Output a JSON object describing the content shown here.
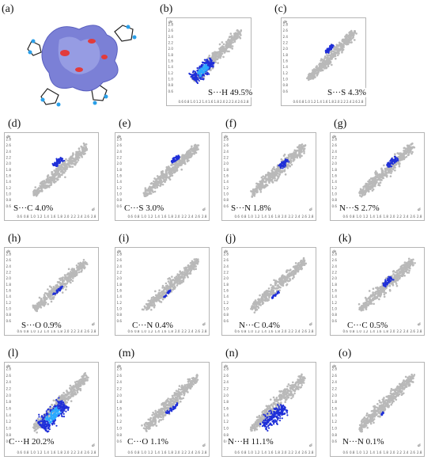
{
  "figure": {
    "panels": [
      {
        "letter": "(a)",
        "kind": "hirshfeld-surface"
      },
      {
        "letter": "(b)",
        "kind": "fingerprint",
        "contact": "S···H",
        "percent": 49.5,
        "caption": "S···H 49.5%"
      },
      {
        "letter": "(c)",
        "kind": "fingerprint",
        "contact": "S···S",
        "percent": 4.3,
        "caption": "S···S 4.3%"
      },
      {
        "letter": "(d)",
        "kind": "fingerprint",
        "contact": "S···C",
        "percent": 4.0,
        "caption": "S···C 4.0%"
      },
      {
        "letter": "(e)",
        "kind": "fingerprint",
        "contact": "C···S",
        "percent": 3.0,
        "caption": "C···S 3.0%"
      },
      {
        "letter": "(f)",
        "kind": "fingerprint",
        "contact": "S···N",
        "percent": 1.8,
        "caption": "S···N 1.8%"
      },
      {
        "letter": "(g)",
        "kind": "fingerprint",
        "contact": "N···S",
        "percent": 2.7,
        "caption": "N···S 2.7%"
      },
      {
        "letter": "(h)",
        "kind": "fingerprint",
        "contact": "S···O",
        "percent": 0.9,
        "caption": "S···O 0.9%"
      },
      {
        "letter": "(i)",
        "kind": "fingerprint",
        "contact": "C···N",
        "percent": 0.4,
        "caption": "C···N 0.4%"
      },
      {
        "letter": "(j)",
        "kind": "fingerprint",
        "contact": "N···C",
        "percent": 0.4,
        "caption": "N···C 0.4%"
      },
      {
        "letter": "(k)",
        "kind": "fingerprint",
        "contact": "C···C",
        "percent": 0.5,
        "caption": "C···C 0.5%"
      },
      {
        "letter": "(l)",
        "kind": "fingerprint",
        "contact": "C···H",
        "percent": 20.2,
        "caption": "C···H 20.2%"
      },
      {
        "letter": "(m)",
        "kind": "fingerprint",
        "contact": "C···O",
        "percent": 1.1,
        "caption": "C···O 1.1%"
      },
      {
        "letter": "(n)",
        "kind": "fingerprint",
        "contact": "N···H",
        "percent": 11.1,
        "caption": "N···H 11.1%"
      },
      {
        "letter": "(o)",
        "kind": "fingerprint",
        "contact": "N···N",
        "percent": 0.1,
        "caption": "N···N 0.1%"
      }
    ],
    "colors": {
      "background_cloud": "#b9b9b9",
      "highlight": "#1f2fd8",
      "highlight_core": "#2aa9ff",
      "surface": "#7b80d6"
    }
  },
  "chart_data": {
    "type": "scatter",
    "title": "",
    "xlabel": "di",
    "ylabel": "de",
    "x_ticks": [
      "0.6",
      "0.8",
      "1.0",
      "1.2",
      "1.4",
      "1.6",
      "1.8",
      "2.0",
      "2.2",
      "2.4",
      "2.6",
      "2.8"
    ],
    "y_ticks": [
      "2.8",
      "2.6",
      "2.4",
      "2.2",
      "2.0",
      "1.8",
      "1.6",
      "1.4",
      "1.2",
      "1.0",
      "0.8",
      "0.6"
    ],
    "xlim": [
      0.4,
      2.8
    ],
    "ylim": [
      0.4,
      2.8
    ],
    "grid": false,
    "series": [
      {
        "contact": "S···H",
        "percent": 49.5
      },
      {
        "contact": "S···S",
        "percent": 4.3
      },
      {
        "contact": "S···C",
        "percent": 4.0
      },
      {
        "contact": "C···S",
        "percent": 3.0
      },
      {
        "contact": "S···N",
        "percent": 1.8
      },
      {
        "contact": "N···S",
        "percent": 2.7
      },
      {
        "contact": "S···O",
        "percent": 0.9
      },
      {
        "contact": "C···N",
        "percent": 0.4
      },
      {
        "contact": "N···C",
        "percent": 0.4
      },
      {
        "contact": "C···C",
        "percent": 0.5
      },
      {
        "contact": "C···H",
        "percent": 20.2
      },
      {
        "contact": "C···O",
        "percent": 1.1
      },
      {
        "contact": "N···H",
        "percent": 11.1
      },
      {
        "contact": "N···N",
        "percent": 0.1
      }
    ]
  }
}
